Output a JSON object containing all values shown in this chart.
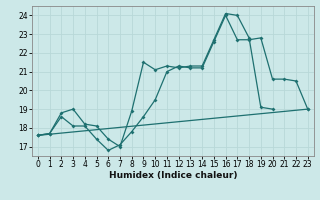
{
  "xlabel": "Humidex (Indice chaleur)",
  "background_color": "#cce8e8",
  "grid_color": "#b8d8d8",
  "line_color": "#1e7070",
  "xlim": [
    -0.5,
    23.5
  ],
  "ylim": [
    16.5,
    24.5
  ],
  "yticks": [
    17,
    18,
    19,
    20,
    21,
    22,
    23,
    24
  ],
  "xticks": [
    0,
    1,
    2,
    3,
    4,
    5,
    6,
    7,
    8,
    9,
    10,
    11,
    12,
    13,
    14,
    15,
    16,
    17,
    18,
    19,
    20,
    21,
    22,
    23
  ],
  "line1_x": [
    0,
    1,
    2,
    3,
    4,
    5,
    6,
    7,
    8,
    9,
    10,
    11,
    12,
    13,
    14,
    15,
    16,
    17,
    18,
    19,
    20,
    21,
    22,
    23
  ],
  "line1_y": [
    17.6,
    17.7,
    18.6,
    18.1,
    18.1,
    17.4,
    16.8,
    17.1,
    17.8,
    18.6,
    19.5,
    21.0,
    21.3,
    21.2,
    21.2,
    22.6,
    24.0,
    22.7,
    22.7,
    22.8,
    20.6,
    20.6,
    20.5,
    19.0
  ],
  "line2_x": [
    0,
    1,
    2,
    3,
    4,
    5,
    6,
    7,
    8,
    9,
    10,
    11,
    12,
    13,
    14,
    15,
    16,
    17,
    18,
    19,
    20
  ],
  "line2_y": [
    17.6,
    17.7,
    18.8,
    19.0,
    18.2,
    18.1,
    17.4,
    17.0,
    18.9,
    21.5,
    21.1,
    21.3,
    21.2,
    21.3,
    21.3,
    22.7,
    24.1,
    24.0,
    22.8,
    19.1,
    19.0
  ],
  "line3_x": [
    0,
    23
  ],
  "line3_y": [
    17.6,
    19.0
  ]
}
